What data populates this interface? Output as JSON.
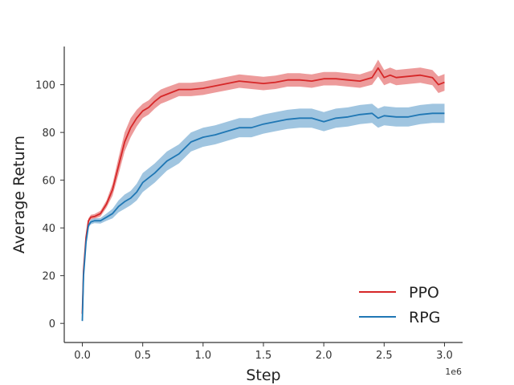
{
  "chart_data": {
    "type": "line",
    "title": "",
    "xlabel": "Step",
    "ylabel": "Average Return",
    "x_offset_label": "1e6",
    "xlim": [
      -0.15,
      3.15
    ],
    "ylim": [
      -8,
      116
    ],
    "x_ticks": [
      0.0,
      0.5,
      1.0,
      1.5,
      2.0,
      2.5,
      3.0
    ],
    "x_tick_labels": [
      "0.0",
      "0.5",
      "1.0",
      "1.5",
      "2.0",
      "2.5",
      "3.0"
    ],
    "y_ticks": [
      0,
      20,
      40,
      60,
      80,
      100
    ],
    "y_tick_labels": [
      "0",
      "20",
      "40",
      "60",
      "80",
      "100"
    ],
    "grid": false,
    "legend_position": "bottom-right",
    "shaded_band": "variability band around each mean curve",
    "series": [
      {
        "name": "PPO",
        "color": "#d62728",
        "band_color": "#ea8a8a",
        "x": [
          0.0,
          0.01,
          0.03,
          0.05,
          0.07,
          0.1,
          0.15,
          0.2,
          0.25,
          0.3,
          0.35,
          0.4,
          0.45,
          0.5,
          0.55,
          0.6,
          0.65,
          0.7,
          0.8,
          0.9,
          1.0,
          1.1,
          1.2,
          1.3,
          1.4,
          1.5,
          1.6,
          1.7,
          1.8,
          1.9,
          2.0,
          2.1,
          2.2,
          2.3,
          2.4,
          2.45,
          2.5,
          2.55,
          2.6,
          2.7,
          2.8,
          2.9,
          2.95,
          3.0
        ],
        "y": [
          4,
          22,
          36,
          43,
          44.5,
          44.8,
          46,
          50,
          56,
          66,
          76,
          82,
          86,
          89,
          90.5,
          93,
          95,
          96,
          98,
          98,
          98.5,
          99.5,
          100.5,
          101.5,
          101,
          100.5,
          101,
          102,
          102,
          101.5,
          102.5,
          102.5,
          102,
          101.5,
          103,
          107,
          103,
          104,
          103,
          103.5,
          104,
          103,
          100,
          101
        ],
        "band": [
          0,
          1,
          1,
          1,
          1,
          1,
          1.2,
          1.5,
          2.5,
          3.5,
          4,
          4,
          3.5,
          3,
          3,
          3,
          3,
          3,
          2.8,
          2.8,
          2.8,
          2.8,
          2.8,
          2.8,
          2.8,
          2.8,
          2.8,
          2.8,
          2.8,
          2.8,
          2.8,
          2.8,
          2.8,
          2.8,
          3,
          3.5,
          3.2,
          3.2,
          3.2,
          3.2,
          3.2,
          3.2,
          3.5,
          3.5
        ]
      },
      {
        "name": "RPG",
        "color": "#1f77b4",
        "band_color": "#8fbbdb",
        "x": [
          0.0,
          0.01,
          0.03,
          0.05,
          0.07,
          0.1,
          0.15,
          0.2,
          0.25,
          0.3,
          0.35,
          0.4,
          0.45,
          0.5,
          0.6,
          0.7,
          0.8,
          0.9,
          1.0,
          1.1,
          1.2,
          1.3,
          1.4,
          1.5,
          1.6,
          1.7,
          1.8,
          1.9,
          2.0,
          2.1,
          2.2,
          2.3,
          2.4,
          2.45,
          2.5,
          2.6,
          2.7,
          2.8,
          2.9,
          3.0
        ],
        "y": [
          1,
          20,
          34,
          41,
          42.5,
          43,
          43,
          44.5,
          46,
          49,
          51,
          52.5,
          55,
          59,
          63,
          68,
          71,
          76,
          78,
          79,
          80.5,
          82,
          82,
          83.5,
          84.5,
          85.5,
          86,
          86,
          84.5,
          86,
          86.5,
          87.5,
          88,
          86,
          87,
          86.5,
          86.5,
          87.5,
          88,
          88
        ],
        "band": [
          0,
          1,
          1,
          1,
          1,
          1,
          1.2,
          1.5,
          2,
          2.5,
          3,
          3,
          3.5,
          4,
          4,
          4,
          4,
          4,
          4,
          4,
          4,
          4,
          4,
          4,
          4,
          4,
          4,
          4,
          4,
          4,
          4,
          4,
          4,
          4,
          4,
          4,
          4,
          4,
          4,
          4
        ]
      }
    ]
  }
}
